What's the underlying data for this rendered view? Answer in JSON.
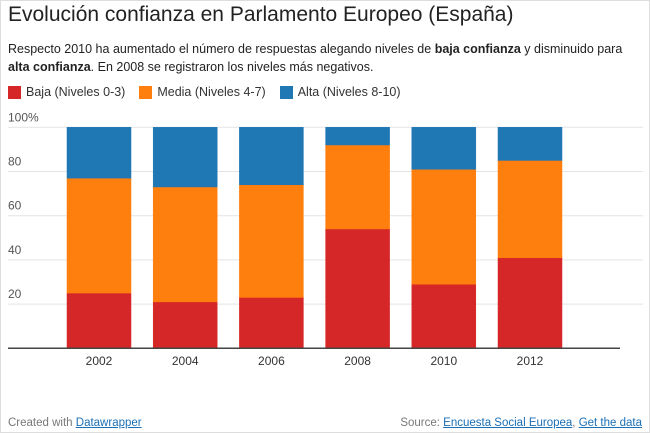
{
  "title": "Evolución confianza en Parlamento Europeo (España)",
  "subtitle": {
    "part1": "Respecto 2010 ha aumentado el número de respuestas alegando niveles de ",
    "bold1": "baja confianza",
    "part2": " y disminuido para ",
    "bold2": "alta confianza",
    "part3": ". En 2008 se registraron los niveles más negativos."
  },
  "footer": {
    "created_with": "Created with",
    "created_link": "Datawrapper",
    "source_label": "Source:",
    "source_link": "Encuesta Social Europea",
    "separator": ",",
    "get_data": "Get the data"
  },
  "chart_data": {
    "type": "bar",
    "stacked": true,
    "categories": [
      "2002",
      "2004",
      "2006",
      "2008",
      "2010",
      "2012"
    ],
    "series": [
      {
        "name": "Baja (Niveles 0-3)",
        "color": "#d62728",
        "values": [
          25,
          21,
          23,
          54,
          29,
          41
        ]
      },
      {
        "name": "Media (Niveles 4-7)",
        "color": "#ff7f0e",
        "values": [
          52,
          52,
          51,
          38,
          52,
          44
        ]
      },
      {
        "name": "Alta (Niveles 8-10)",
        "color": "#1f77b4",
        "values": [
          23,
          27,
          26,
          8,
          19,
          15
        ]
      }
    ],
    "ylim": [
      0,
      100
    ],
    "yticks": [
      "20",
      "40",
      "60",
      "80",
      "100%"
    ],
    "ytick_values": [
      20,
      40,
      60,
      80,
      100
    ],
    "grid": true,
    "legend": "top-left"
  }
}
